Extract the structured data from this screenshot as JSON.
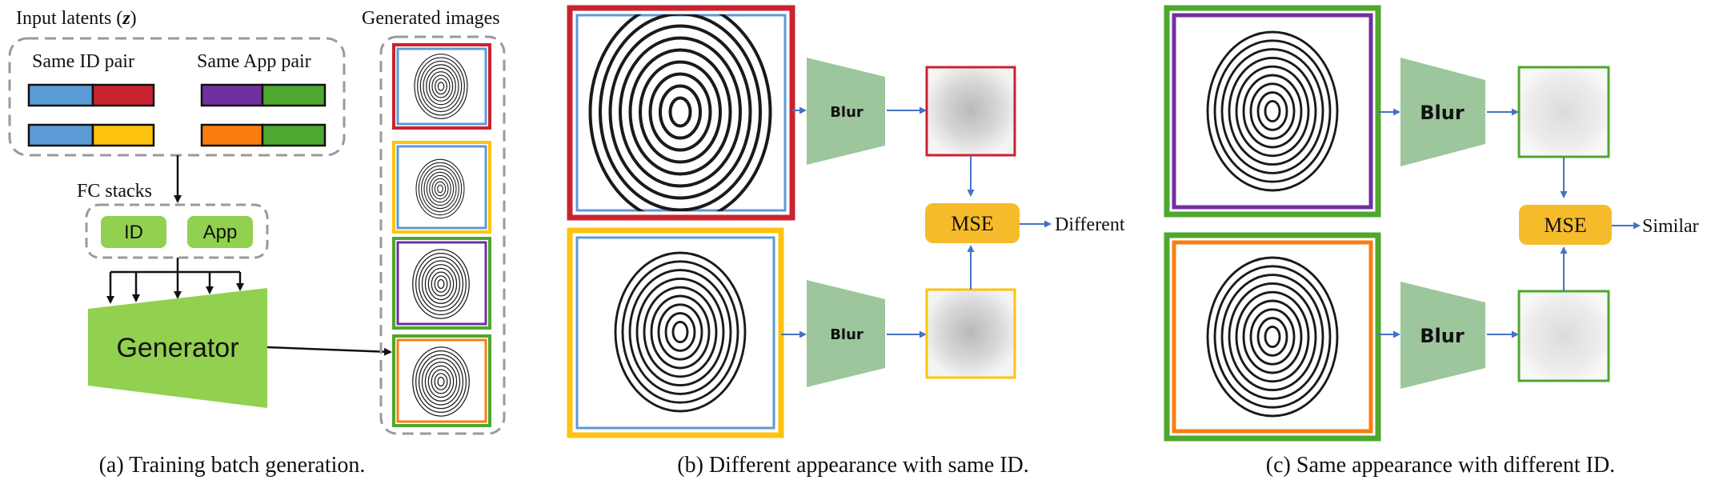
{
  "colors": {
    "id_blue": "#5b9bd5",
    "id_red": "#c9232f",
    "id_yellow": "#fdc30f",
    "app_purple": "#7030a0",
    "app_green": "#4ea72e",
    "app_orange": "#fa7d10",
    "fc_green": "#92d050",
    "blur_green": "#9dc69c",
    "mse_yellow": "#f5bb2a",
    "arrow_blue": "#4472c4",
    "dash_gray": "#9a9a9a"
  },
  "panel_a": {
    "input_latents_label": "Input latents (",
    "input_latents_symbol": "z",
    "input_latents_close": ")",
    "same_id_pair": "Same ID pair",
    "same_app_pair": "Same App pair",
    "fc_stacks": "FC stacks",
    "fc_id": "ID",
    "fc_app": "App",
    "generator": "Generator",
    "generated_images": "Generated images",
    "caption": "(a) Training batch generation."
  },
  "panel_b": {
    "blur_top": "Blur",
    "blur_bottom": "Blur",
    "mse": "MSE",
    "result": "Different",
    "caption": "(b) Different appearance with same ID."
  },
  "panel_c": {
    "blur_top": "Blur",
    "blur_bottom": "Blur",
    "mse": "MSE",
    "result": "Similar",
    "caption": "(c) Same appearance with different ID."
  }
}
